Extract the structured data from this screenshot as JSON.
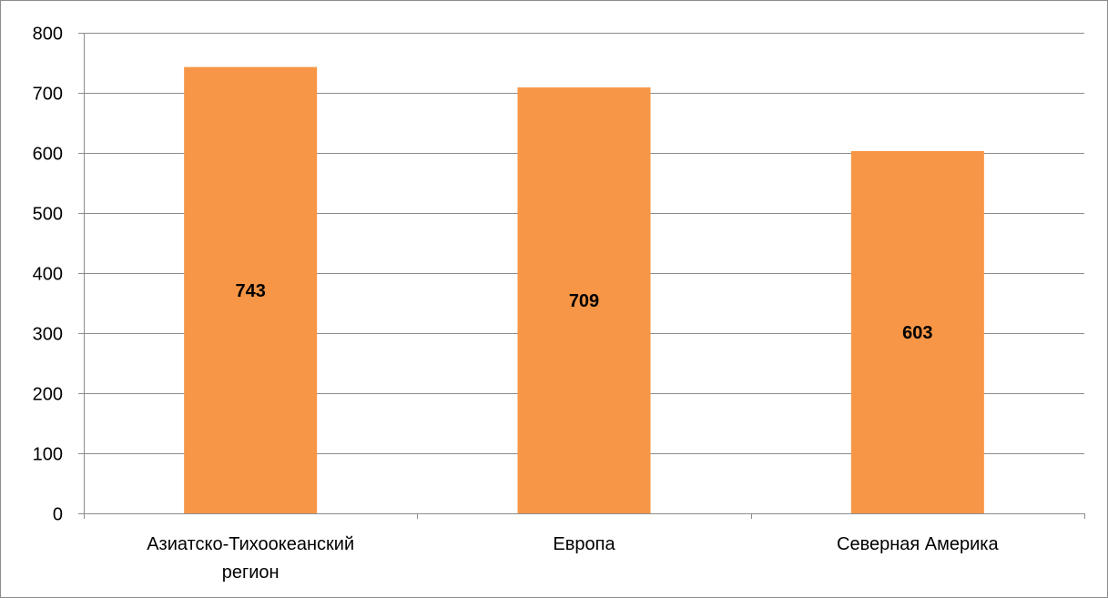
{
  "chart_data": {
    "type": "bar",
    "categories": [
      "Азиатско-Тихоокеанский регион",
      "Европа",
      "Северная Америка"
    ],
    "category_label_lines": [
      [
        "Азиатско-Тихоокеанский",
        "регион"
      ],
      [
        "Европа"
      ],
      [
        "Северная Америка"
      ]
    ],
    "values": [
      743,
      709,
      603
    ],
    "data_labels": [
      "743",
      "709",
      "603"
    ],
    "y_ticks": [
      "0",
      "100",
      "200",
      "300",
      "400",
      "500",
      "600",
      "700",
      "800"
    ],
    "ylim": [
      0,
      800
    ],
    "title": "",
    "xlabel": "",
    "ylabel": "",
    "grid": true,
    "legend": "none",
    "colors": {
      "bar": "#F79646",
      "grid": "#8c8c8c",
      "axis": "#8c8c8c",
      "text": "#000000"
    }
  }
}
